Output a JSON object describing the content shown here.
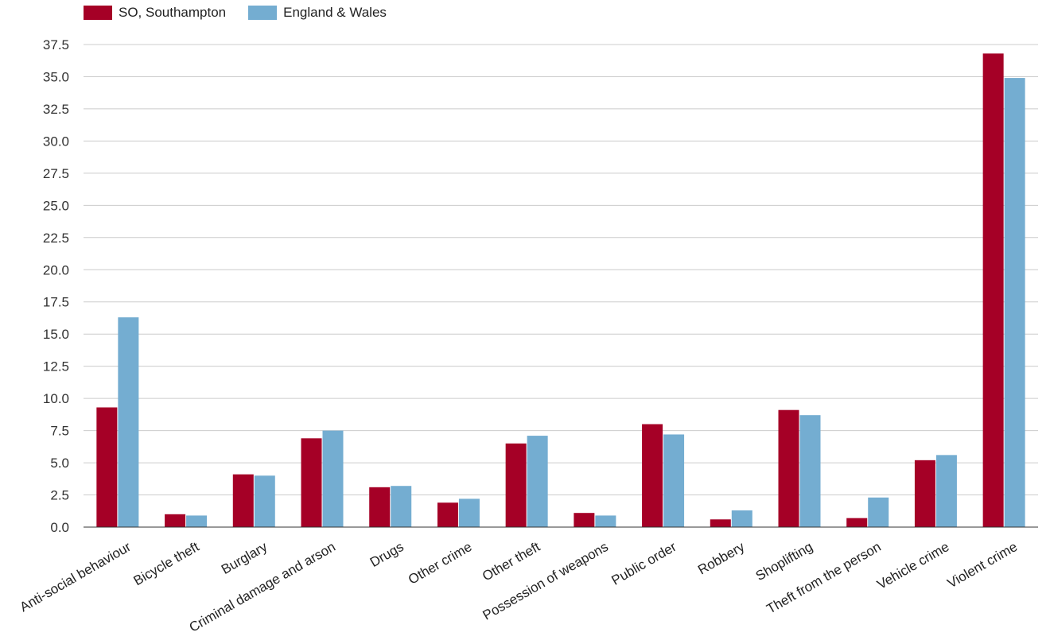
{
  "chart_data": {
    "type": "bar",
    "title": "",
    "xlabel": "",
    "ylabel": "",
    "ylim": [
      0,
      37.5
    ],
    "yticks": [
      "0.0",
      "2.5",
      "5.0",
      "7.5",
      "10.0",
      "12.5",
      "15.0",
      "17.5",
      "20.0",
      "22.5",
      "25.0",
      "27.5",
      "30.0",
      "32.5",
      "35.0",
      "37.5"
    ],
    "grid": true,
    "legend_position": "top-left",
    "categories": [
      "Anti-social behaviour",
      "Bicycle theft",
      "Burglary",
      "Criminal damage and arson",
      "Drugs",
      "Other crime",
      "Other theft",
      "Possession of weapons",
      "Public order",
      "Robbery",
      "Shoplifting",
      "Theft from the person",
      "Vehicle crime",
      "Violent crime"
    ],
    "series": [
      {
        "name": "SO, Southampton",
        "color": "#a50026",
        "values": [
          9.3,
          1.0,
          4.1,
          6.9,
          3.1,
          1.9,
          6.5,
          1.1,
          8.0,
          0.6,
          9.1,
          0.7,
          5.2,
          36.8
        ]
      },
      {
        "name": "England & Wales",
        "color": "#74add1",
        "values": [
          16.3,
          0.9,
          4.0,
          7.5,
          3.2,
          2.2,
          7.1,
          0.9,
          7.2,
          1.3,
          8.7,
          2.3,
          5.6,
          34.9
        ]
      }
    ]
  }
}
